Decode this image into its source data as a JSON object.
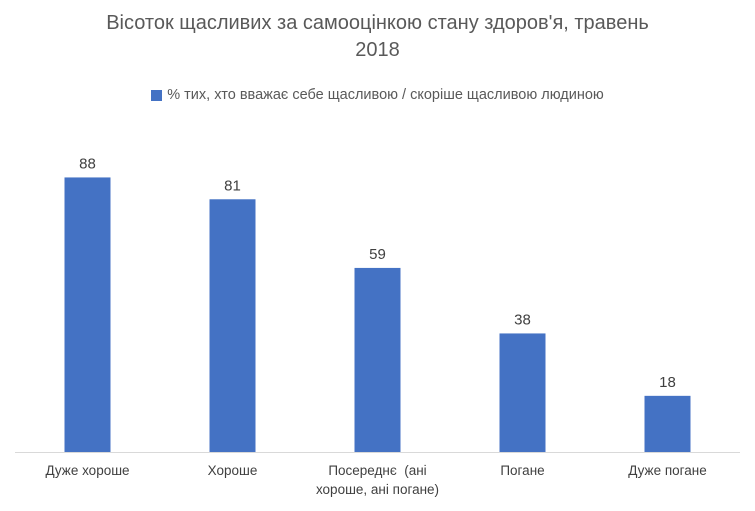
{
  "chart_data": {
    "type": "bar",
    "title": "Вісоток щасливих за самооцінкою стану здоров'я, травень 2018",
    "title_lines": [
      "Вісоток щасливих за самооцінкою стану здоров'я, травень",
      "2018"
    ],
    "legend_position": "top",
    "grid": false,
    "ylim": [
      0,
      100
    ],
    "categories": [
      "Дуже хороше",
      "Хороше",
      "Посереднє  (ані хороше, ані погане)",
      "Погане",
      "Дуже погане"
    ],
    "category_lines": [
      [
        "Дуже хороше"
      ],
      [
        "Хороше"
      ],
      [
        "Посереднє  (ані",
        "хороше, ані погане)"
      ],
      [
        "Погане"
      ],
      [
        "Дуже погане"
      ]
    ],
    "series": [
      {
        "name": "% тих, хто вважає себе щасливою / скоріше щасливою людиною",
        "color": "#4472C4",
        "values": [
          88,
          81,
          59,
          38,
          18
        ]
      }
    ]
  }
}
